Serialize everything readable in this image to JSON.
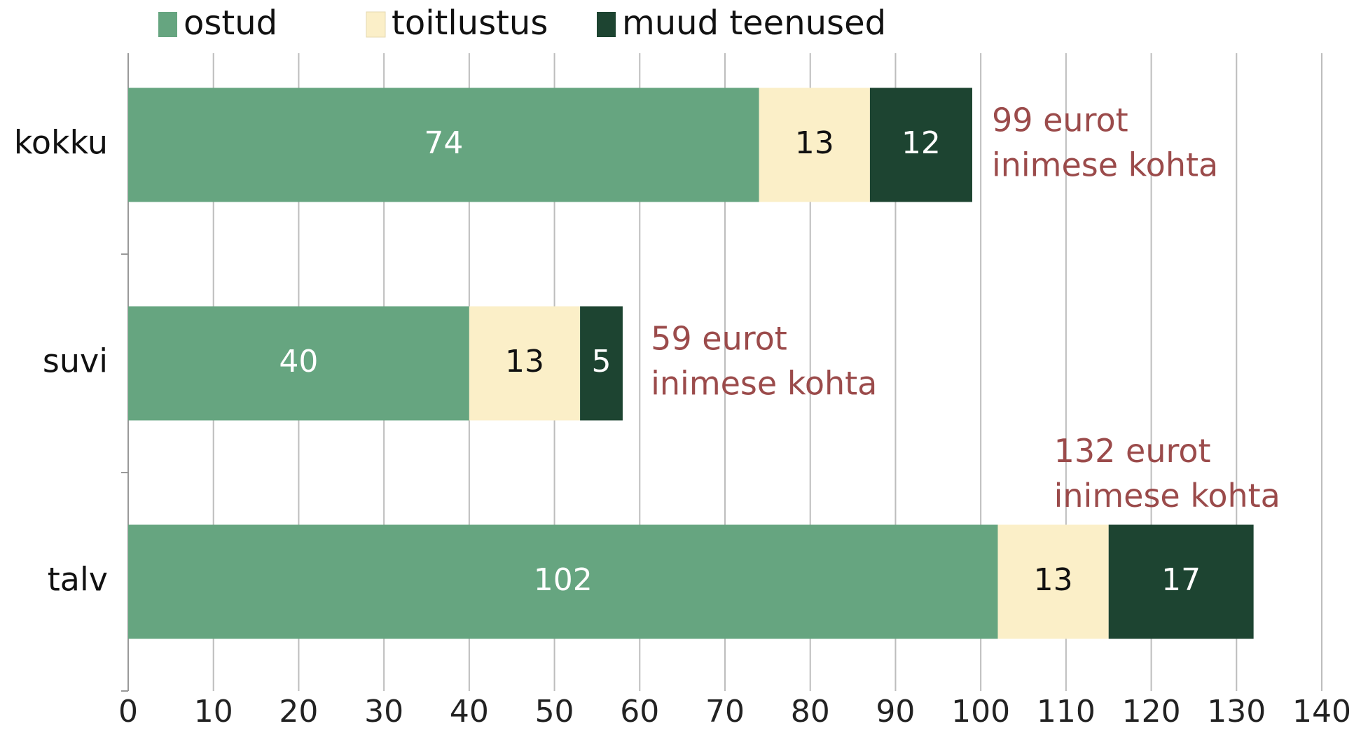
{
  "chart_data": {
    "type": "stacked-barh",
    "categories": [
      "kokku",
      "suvi",
      "talv"
    ],
    "series": [
      {
        "name": "ostud",
        "color": "#66a580",
        "label_color": "#ffffff",
        "values": [
          74,
          40,
          102
        ]
      },
      {
        "name": "toitlustus",
        "color": "#fbefc8",
        "label_color": "#111111",
        "values": [
          13,
          13,
          13
        ]
      },
      {
        "name": "muud teenused",
        "color": "#1d4431",
        "label_color": "#ffffff",
        "values": [
          12,
          5,
          17
        ]
      }
    ],
    "totals": [
      99,
      59,
      132
    ],
    "annotations": [
      [
        "99 eurot",
        "inimese kohta"
      ],
      [
        "59 eurot",
        "inimese kohta"
      ],
      [
        "132 eurot",
        "inimese kohta"
      ]
    ],
    "xlim": [
      0,
      140
    ],
    "xticks": [
      0,
      10,
      20,
      30,
      40,
      50,
      60,
      70,
      80,
      90,
      100,
      110,
      120,
      130,
      140
    ],
    "grid": true,
    "legend": "top"
  }
}
